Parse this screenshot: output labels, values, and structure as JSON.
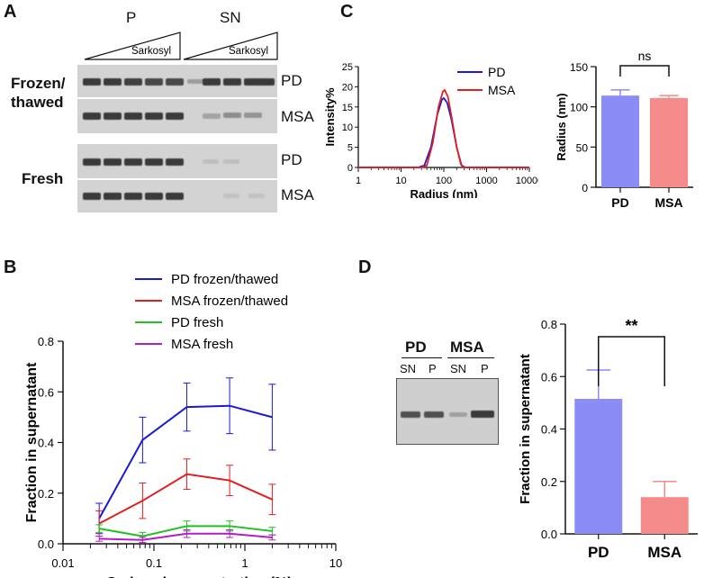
{
  "panels": {
    "a": "A",
    "b": "B",
    "c": "C",
    "d": "D"
  },
  "panel_a": {
    "p_label": "P",
    "sn_label": "SN",
    "wedge_label_p": "Sarkosyl",
    "wedge_label_sn": "Sarkosyl",
    "group_frozen_line1": "Frozen/",
    "group_frozen_line2": "thawed",
    "group_fresh": "Fresh",
    "row_labels": [
      "PD",
      "MSA",
      "PD",
      "MSA"
    ]
  },
  "panel_d_blot": {
    "pd_label": "PD",
    "msa_label": "MSA",
    "lanes": [
      "SN",
      "P",
      "SN",
      "P"
    ]
  },
  "chart_data": [
    {
      "id": "B",
      "type": "line",
      "title": "",
      "xlabel": "Sarkosyl concentration (%)",
      "ylabel": "Fraction in supernatant",
      "xscale": "log",
      "xlim": [
        0.01,
        10
      ],
      "ylim": [
        0,
        0.8
      ],
      "x_ticks": [
        "0.01",
        "0.1",
        "1",
        "10"
      ],
      "y_ticks": [
        "0.0",
        "0.2",
        "0.4",
        "0.6",
        "0.8"
      ],
      "legend_position": "top-right",
      "x": [
        0.025,
        0.075,
        0.23,
        0.68,
        2.0
      ],
      "series": [
        {
          "name": "PD frozen/thawed",
          "color": "#1a1ad0",
          "values": [
            0.1,
            0.41,
            0.54,
            0.545,
            0.5
          ],
          "errors": [
            0.06,
            0.09,
            0.095,
            0.11,
            0.13
          ]
        },
        {
          "name": "MSA frozen/thawed",
          "color": "#e02020",
          "values": [
            0.08,
            0.17,
            0.275,
            0.25,
            0.175
          ],
          "errors": [
            0.05,
            0.07,
            0.06,
            0.06,
            0.06
          ]
        },
        {
          "name": "PD fresh",
          "color": "#20c020",
          "values": [
            0.06,
            0.03,
            0.07,
            0.07,
            0.05
          ],
          "errors": [
            0.015,
            0.015,
            0.02,
            0.02,
            0.015
          ]
        },
        {
          "name": "MSA fresh",
          "color": "#b020c0",
          "values": [
            0.02,
            0.015,
            0.04,
            0.04,
            0.025
          ],
          "errors": [
            0.01,
            0.01,
            0.015,
            0.015,
            0.01
          ]
        }
      ]
    },
    {
      "id": "C-left",
      "type": "line",
      "xlabel": "Radius (nm)",
      "ylabel": "Intensity%",
      "xscale": "log",
      "xlim": [
        1,
        10000
      ],
      "ylim": [
        0,
        25
      ],
      "x_ticks": [
        "1",
        "10",
        "100",
        "1000",
        "10000"
      ],
      "y_ticks": [
        "0",
        "5",
        "10",
        "15",
        "20",
        "25"
      ],
      "legend_position": "top-right",
      "series": [
        {
          "name": "PD",
          "color": "#1a1ad0",
          "x": [
            1,
            25,
            35,
            50,
            70,
            90,
            100,
            120,
            150,
            200,
            260,
            320,
            10000
          ],
          "values": [
            0,
            0,
            0.5,
            5,
            13,
            16.8,
            17.2,
            16,
            12,
            5,
            0.5,
            0,
            0
          ]
        },
        {
          "name": "MSA",
          "color": "#e02020",
          "x": [
            1,
            30,
            40,
            55,
            75,
            95,
            105,
            125,
            155,
            200,
            250,
            300,
            10000
          ],
          "values": [
            0,
            0,
            0.5,
            6,
            15,
            18.8,
            19.2,
            17.5,
            12,
            5,
            0.8,
            0,
            0
          ]
        }
      ]
    },
    {
      "id": "C-right",
      "type": "bar",
      "categories": [
        "PD",
        "MSA"
      ],
      "values": [
        114,
        111
      ],
      "errors": [
        7,
        3
      ],
      "colors": [
        "#8c8cf5",
        "#f58a8a"
      ],
      "ylabel": "Radius  (nm)",
      "ylim": [
        0,
        150
      ],
      "y_ticks": [
        "0",
        "50",
        "100",
        "150"
      ],
      "significance": "ns"
    },
    {
      "id": "D",
      "type": "bar",
      "categories": [
        "PD",
        "MSA"
      ],
      "values": [
        0.515,
        0.14
      ],
      "errors": [
        0.11,
        0.06
      ],
      "colors": [
        "#8c8cf5",
        "#f58a8a"
      ],
      "ylabel": "Fraction in supernatant",
      "ylim": [
        0,
        0.8
      ],
      "y_ticks": [
        "0.0",
        "0.2",
        "0.4",
        "0.6",
        "0.8"
      ],
      "significance": "**"
    }
  ]
}
